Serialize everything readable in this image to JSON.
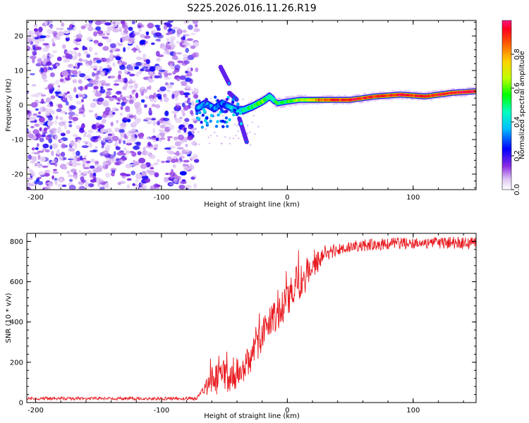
{
  "title": "S225.2026.016.11.26.R19",
  "colors": {
    "snr_line": "#e8191e",
    "background": "#ffffff",
    "noise": "#8a2be2"
  },
  "chart_data": [
    {
      "type": "heatmap",
      "name": "spectrogram",
      "xlabel": "Height of straight line (km)",
      "ylabel": "Frequency (Hz)",
      "xlim": [
        -207,
        150
      ],
      "ylim": [
        -24.5,
        24.5
      ],
      "x_ticks": [
        -200,
        -100,
        0,
        100
      ],
      "x_tick_labels": [
        "-200",
        "-100",
        "0",
        "100"
      ],
      "y_ticks": [
        -20,
        -10,
        0,
        10,
        20
      ],
      "y_tick_labels": [
        "-20",
        "-10",
        "0",
        "10",
        "20"
      ],
      "colorbar": {
        "label": "Normalized spectral amplitude",
        "range": [
          0,
          1
        ],
        "ticks": [
          0.0,
          0.2,
          0.4,
          0.6,
          0.8
        ],
        "tick_labels": [
          "0.0",
          "0.2",
          "0.4",
          "0.6",
          "0.8"
        ]
      },
      "noise_region_x": [
        -207,
        -72
      ],
      "signal_track": {
        "x": [
          -72,
          -65,
          -58,
          -52,
          -46,
          -40,
          -35,
          -28,
          -20,
          -14,
          -8,
          0,
          10,
          20,
          30,
          50,
          70,
          90,
          110,
          130,
          150
        ],
        "freq": [
          -1,
          0.5,
          -1,
          0.5,
          -0.5,
          -1.5,
          -1.5,
          -0.5,
          1,
          2.5,
          0.5,
          1,
          1.5,
          1.5,
          1.5,
          1.5,
          2.5,
          3,
          2.5,
          3.5,
          4
        ],
        "amplitude": [
          0.3,
          0.35,
          0.3,
          0.3,
          0.35,
          0.4,
          0.45,
          0.5,
          0.6,
          0.5,
          0.55,
          0.55,
          0.65,
          0.75,
          0.9,
          0.95,
          0.9,
          0.95,
          0.9,
          0.95,
          0.98
        ]
      },
      "streaks": [
        {
          "x": [
            -53,
            -46
          ],
          "freq": [
            11,
            6
          ],
          "amplitude": 0.35
        },
        {
          "x": [
            -46,
            -40
          ],
          "freq": [
            3.5,
            1.5
          ],
          "amplitude": 0.3
        },
        {
          "x": [
            -38,
            -32
          ],
          "freq": [
            -4,
            -11
          ],
          "amplitude": 0.3
        }
      ]
    },
    {
      "type": "line",
      "name": "snr",
      "xlabel": "Height of straight line (km)",
      "ylabel": "SNR (10 * v/v)",
      "xlim": [
        -207,
        150
      ],
      "ylim": [
        0,
        840
      ],
      "x_ticks": [
        -200,
        -100,
        0,
        100
      ],
      "x_tick_labels": [
        "-200",
        "-100",
        "0",
        "100"
      ],
      "y_ticks": [
        0,
        200,
        400,
        600,
        800
      ],
      "y_tick_labels": [
        "0",
        "200",
        "400",
        "600",
        "800"
      ],
      "series": [
        {
          "name": "SNR",
          "x": [
            -207,
            -72,
            -65,
            -62,
            -58,
            -52,
            -45,
            -40,
            -35,
            -30,
            -25,
            -20,
            -15,
            -10,
            -5,
            0,
            5,
            10,
            15,
            20,
            25,
            30,
            40,
            50,
            60,
            70,
            80,
            90,
            100,
            110,
            120,
            130,
            140,
            150
          ],
          "y": [
            20,
            20,
            60,
            150,
            100,
            120,
            150,
            130,
            180,
            220,
            280,
            330,
            390,
            420,
            450,
            500,
            580,
            600,
            640,
            680,
            700,
            730,
            760,
            770,
            780,
            785,
            790,
            790,
            790,
            795,
            790,
            795,
            790,
            790
          ],
          "noise": [
            8,
            8,
            40,
            90,
            80,
            90,
            90,
            90,
            80,
            80,
            80,
            80,
            80,
            80,
            90,
            90,
            90,
            90,
            70,
            60,
            50,
            40,
            30,
            30,
            30,
            30,
            30,
            30,
            30,
            30,
            30,
            30,
            30,
            30
          ]
        }
      ]
    }
  ]
}
